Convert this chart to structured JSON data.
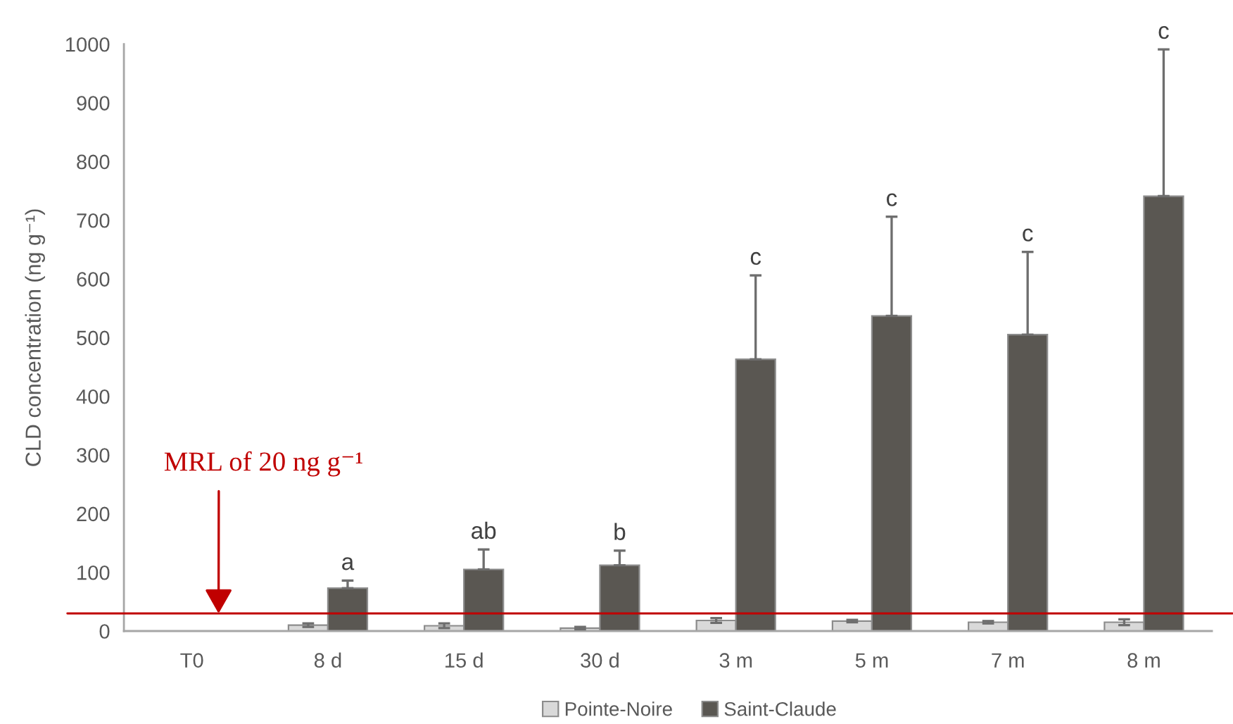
{
  "chart_data": {
    "type": "bar",
    "ylabel": "CLD concentration (ng g⁻¹)",
    "categories": [
      "T0",
      "8 d",
      "15 d",
      "30 d",
      "3 m",
      "5 m",
      "7 m",
      "8 m"
    ],
    "series": [
      {
        "name": "Pointe-Noire",
        "color": "#d9d9d9",
        "values": [
          null,
          10,
          9,
          5,
          18,
          17,
          15,
          15
        ],
        "errors": [
          null,
          3,
          4,
          2,
          4,
          2,
          2,
          5
        ]
      },
      {
        "name": "Saint-Claude",
        "color": "#5a5752",
        "values": [
          null,
          73,
          105,
          112,
          463,
          537,
          505,
          741
        ],
        "errors": [
          null,
          [
            73,
            86
          ],
          [
            105,
            139
          ],
          [
            112,
            137
          ],
          [
            463,
            606
          ],
          [
            537,
            706
          ],
          [
            505,
            646
          ],
          [
            741,
            991
          ]
        ]
      }
    ],
    "ylim": [
      0,
      1000
    ],
    "yticks": [
      0,
      100,
      200,
      300,
      400,
      500,
      600,
      700,
      800,
      900,
      1000
    ],
    "legend": "bottom",
    "ref_lines": [
      {
        "axis": "y",
        "value": 30,
        "label": "MRL of 20 ng g⁻¹",
        "color": "#c00000"
      }
    ],
    "annotations": [
      "a",
      "ab",
      "b",
      "c",
      "c",
      "c",
      "c"
    ]
  }
}
